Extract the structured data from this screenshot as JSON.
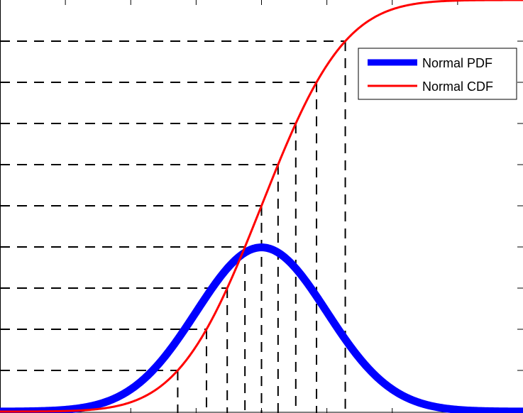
{
  "chart_data": {
    "type": "line",
    "x_range": [
      -4,
      4
    ],
    "y_range": [
      0,
      1
    ],
    "grid": false,
    "legend_position": "upper-right",
    "series": [
      {
        "name": "Normal PDF",
        "kind": "pdf",
        "mu": 0,
        "sigma": 1,
        "color": "#0000ff"
      },
      {
        "name": "Normal CDF",
        "kind": "cdf",
        "mu": 0,
        "sigma": 1,
        "color": "#ff0000"
      }
    ],
    "cdf_levels": [
      0.1,
      0.2,
      0.3,
      0.4,
      0.5,
      0.6,
      0.7,
      0.8,
      0.9
    ],
    "quantiles": [
      -1.2816,
      -0.8416,
      -0.5244,
      -0.2533,
      0.0,
      0.2533,
      0.5244,
      0.8416,
      1.2816
    ],
    "x_ticks": [
      -3,
      -2,
      -1,
      0,
      1,
      2,
      3
    ]
  }
}
